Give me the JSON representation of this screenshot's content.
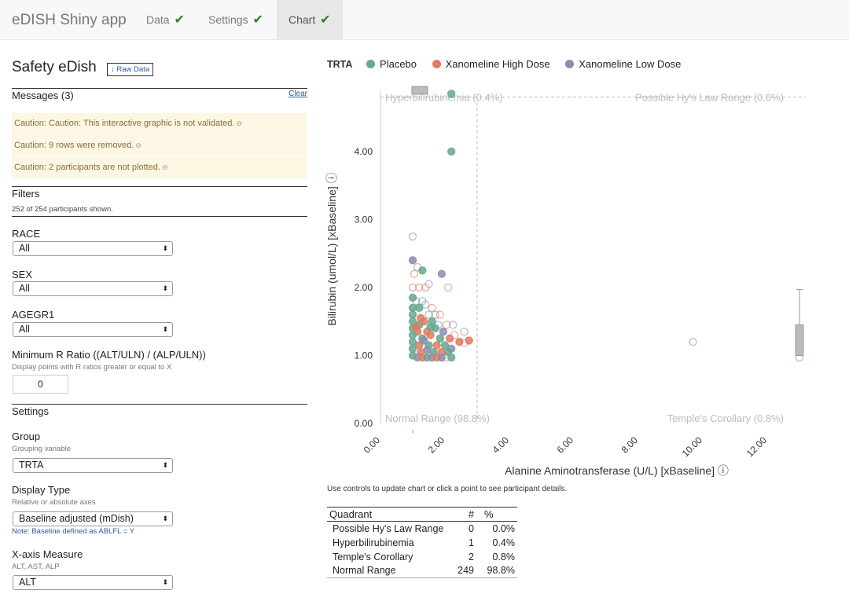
{
  "navbar": {
    "brand": "eDISH Shiny app",
    "tabs": [
      {
        "label": "Data",
        "check": "✔"
      },
      {
        "label": "Settings",
        "check": "✔"
      },
      {
        "label": "Chart",
        "check": "✔"
      }
    ]
  },
  "sidebar": {
    "title": "Safety eDish",
    "raw_data_button": "↓ Raw Data",
    "messages": {
      "header": "Messages (3)",
      "clear": "Clear",
      "items": [
        {
          "label": "Caution:",
          "text": " Caution: This interactive graphic is not validated.",
          "x": "⊖"
        },
        {
          "label": "Caution:",
          "text": " 9 rows were removed.",
          "x": "⊖"
        },
        {
          "label": "Caution:",
          "text": " 2 participants are not plotted.",
          "x": "⊖"
        }
      ]
    },
    "filters": {
      "header": "Filters",
      "shown": "252 of 254 participants shown.",
      "race_label": "RACE",
      "race_value": "All",
      "sex_label": "SEX",
      "sex_value": "All",
      "agegr_label": "AGEGR1",
      "agegr_value": "All",
      "rratio_label": "Minimum R Ratio ((ALT/ULN) / (ALP/ULN))",
      "rratio_desc": "Display points with R ratios greater or equal to X",
      "rratio_value": "0"
    },
    "settings": {
      "header": "Settings",
      "group_label": "Group",
      "group_desc": "Grouping variable",
      "group_value": "TRTA",
      "display_label": "Display Type",
      "display_desc": "Relative or absolute axes",
      "display_value": "Baseline adjusted (mDish)",
      "display_note": "Note: Baseline defined as ABLFL = Y",
      "xaxis_label": "X-axis Measure",
      "xaxis_desc": "ALT, AST, ALP",
      "xaxis_value": "ALT"
    },
    "select_arrow": "⬍"
  },
  "legend": {
    "title": "TRTA",
    "items": [
      {
        "label": "Placebo",
        "color": "#66a88e"
      },
      {
        "label": "Xanomeline High Dose",
        "color": "#e07b5f"
      },
      {
        "label": "Xanomeline Low Dose",
        "color": "#8a8fae"
      }
    ]
  },
  "chart_data": {
    "type": "scatter",
    "xlabel": "Alanine Aminotransferase (U/L) [xBaseline]",
    "ylabel": "Bilirubin (umol/L) [xBaseline]",
    "info_icon": "ⓘ",
    "xlim": [
      0,
      13.2
    ],
    "ylim": [
      0,
      4.9
    ],
    "x_ticks": [
      "0.00",
      "2.00",
      "4.00",
      "6.00",
      "8.00",
      "10.00",
      "12.00"
    ],
    "y_ticks": [
      "0.00",
      "1.00",
      "2.00",
      "3.00",
      "4.00"
    ],
    "x_cut": 3,
    "y_cut": 4.8,
    "quadrant_labels": {
      "top_left": "Hyperbilirubinemia (0.4%)",
      "top_right": "Possible Hy's Law Range (0.0%)",
      "bottom_left": "Normal Range (98.8%)",
      "bottom_right": "Temple's Corollary (0.8%)"
    },
    "points": [
      {
        "x": 2.2,
        "y": 4.0,
        "g": 0
      },
      {
        "x": 2.2,
        "y": 4.85,
        "g": 0
      },
      {
        "x": 1.0,
        "y": 2.75,
        "g": 2,
        "o": 1
      },
      {
        "x": 1.0,
        "y": 2.4,
        "g": 2
      },
      {
        "x": 1.3,
        "y": 2.25,
        "g": 0
      },
      {
        "x": 1.9,
        "y": 2.2,
        "g": 2
      },
      {
        "x": 1.15,
        "y": 2.3,
        "g": 2,
        "o": 1
      },
      {
        "x": 1.05,
        "y": 2.2,
        "g": 1,
        "o": 1
      },
      {
        "x": 1.0,
        "y": 2.0,
        "g": 1,
        "o": 1
      },
      {
        "x": 1.2,
        "y": 2.0,
        "g": 1,
        "o": 1
      },
      {
        "x": 1.4,
        "y": 2.0,
        "g": 1,
        "o": 1
      },
      {
        "x": 2.1,
        "y": 2.0,
        "g": 1,
        "o": 1
      },
      {
        "x": 1.5,
        "y": 2.05,
        "g": 2,
        "o": 1
      },
      {
        "x": 1.0,
        "y": 1.85,
        "g": 0
      },
      {
        "x": 1.1,
        "y": 1.8,
        "g": 2,
        "o": 1
      },
      {
        "x": 1.3,
        "y": 1.8,
        "g": 0,
        "o": 1
      },
      {
        "x": 1.0,
        "y": 1.7,
        "g": 0
      },
      {
        "x": 1.2,
        "y": 1.7,
        "g": 0
      },
      {
        "x": 1.4,
        "y": 1.75,
        "g": 2,
        "o": 1
      },
      {
        "x": 1.6,
        "y": 1.7,
        "g": 1,
        "o": 1
      },
      {
        "x": 1.0,
        "y": 1.6,
        "g": 0
      },
      {
        "x": 1.25,
        "y": 1.55,
        "g": 1
      },
      {
        "x": 1.5,
        "y": 1.6,
        "g": 0,
        "o": 1
      },
      {
        "x": 1.7,
        "y": 1.6,
        "g": 2,
        "o": 1
      },
      {
        "x": 1.0,
        "y": 1.5,
        "g": 0
      },
      {
        "x": 1.2,
        "y": 1.45,
        "g": 0
      },
      {
        "x": 1.35,
        "y": 1.5,
        "g": 1
      },
      {
        "x": 1.6,
        "y": 1.5,
        "g": 0
      },
      {
        "x": 1.8,
        "y": 1.45,
        "g": 2,
        "o": 1
      },
      {
        "x": 2.05,
        "y": 1.45,
        "g": 1,
        "o": 1
      },
      {
        "x": 2.25,
        "y": 1.45,
        "g": 2,
        "o": 1
      },
      {
        "x": 1.0,
        "y": 1.4,
        "g": 0
      },
      {
        "x": 1.15,
        "y": 1.35,
        "g": 1
      },
      {
        "x": 1.45,
        "y": 1.35,
        "g": 1
      },
      {
        "x": 1.7,
        "y": 1.4,
        "g": 0
      },
      {
        "x": 1.95,
        "y": 1.35,
        "g": 2
      },
      {
        "x": 2.3,
        "y": 1.3,
        "g": 1,
        "o": 1
      },
      {
        "x": 2.6,
        "y": 1.35,
        "g": 2,
        "o": 1
      },
      {
        "x": 1.0,
        "y": 1.3,
        "g": 0
      },
      {
        "x": 1.3,
        "y": 1.25,
        "g": 0
      },
      {
        "x": 1.55,
        "y": 1.3,
        "g": 1
      },
      {
        "x": 1.85,
        "y": 1.25,
        "g": 0
      },
      {
        "x": 2.15,
        "y": 1.25,
        "g": 1
      },
      {
        "x": 2.45,
        "y": 1.2,
        "g": 1
      },
      {
        "x": 2.75,
        "y": 1.22,
        "g": 1
      },
      {
        "x": 2.6,
        "y": 1.18,
        "g": 1,
        "o": 1
      },
      {
        "x": 1.0,
        "y": 1.2,
        "g": 0
      },
      {
        "x": 1.2,
        "y": 1.15,
        "g": 1
      },
      {
        "x": 1.5,
        "y": 1.15,
        "g": 0
      },
      {
        "x": 1.75,
        "y": 1.15,
        "g": 1
      },
      {
        "x": 2.0,
        "y": 1.15,
        "g": 0
      },
      {
        "x": 2.2,
        "y": 1.1,
        "g": 2
      },
      {
        "x": 1.0,
        "y": 1.1,
        "g": 0
      },
      {
        "x": 1.25,
        "y": 1.05,
        "g": 1
      },
      {
        "x": 1.45,
        "y": 1.08,
        "g": 2
      },
      {
        "x": 1.65,
        "y": 1.05,
        "g": 0
      },
      {
        "x": 1.9,
        "y": 1.05,
        "g": 1
      },
      {
        "x": 2.1,
        "y": 1.05,
        "g": 0
      },
      {
        "x": 1.0,
        "y": 1.0,
        "g": 0
      },
      {
        "x": 1.15,
        "y": 0.97,
        "g": 2
      },
      {
        "x": 1.3,
        "y": 0.97,
        "g": 1
      },
      {
        "x": 1.45,
        "y": 0.97,
        "g": 0
      },
      {
        "x": 1.6,
        "y": 0.97,
        "g": 2
      },
      {
        "x": 1.75,
        "y": 0.97,
        "g": 1
      },
      {
        "x": 1.9,
        "y": 0.97,
        "g": 2
      },
      {
        "x": 2.05,
        "y": 0.97,
        "g": 1,
        "o": 1
      },
      {
        "x": 2.2,
        "y": 0.97,
        "g": 0
      },
      {
        "x": 1.35,
        "y": 1.22,
        "g": 2
      },
      {
        "x": 1.1,
        "y": 1.42,
        "g": 1
      },
      {
        "x": 1.55,
        "y": 1.42,
        "g": 0
      },
      {
        "x": 1.85,
        "y": 1.6,
        "g": 1,
        "o": 1
      },
      {
        "x": 9.7,
        "y": 1.2,
        "g": 2,
        "o": 1
      },
      {
        "x": 13.0,
        "y": 0.97,
        "g": 1,
        "o": 1
      }
    ]
  },
  "instructions": "Use controls to update chart or click a point to see participant details.",
  "table": {
    "headers": [
      "Quadrant",
      "#",
      "%"
    ],
    "rows": [
      [
        "Possible Hy's Law Range",
        "0",
        "0.0%"
      ],
      [
        "Hyperbilirubinemia",
        "1",
        "0.4%"
      ],
      [
        "Temple's Corollary",
        "2",
        "0.8%"
      ],
      [
        "Normal Range",
        "249",
        "98.8%"
      ]
    ]
  }
}
